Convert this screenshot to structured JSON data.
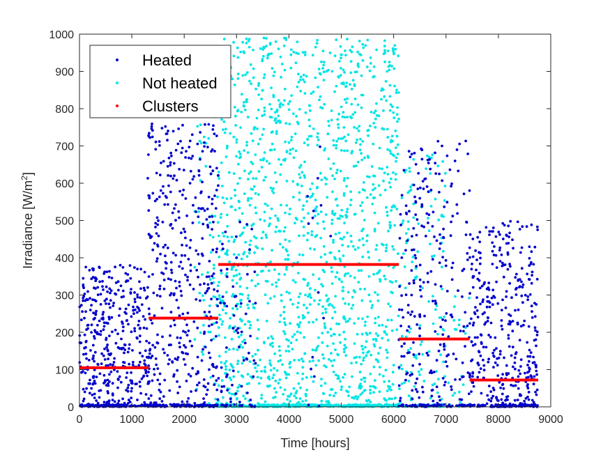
{
  "chart_data": {
    "type": "scatter",
    "xlabel": "Time [hours]",
    "ylabel_main": "Irradiance [W/m",
    "ylabel_sup": "2",
    "ylabel_end": "]",
    "xlim": [
      0,
      9000
    ],
    "ylim": [
      0,
      1000
    ],
    "xticks": [
      0,
      1000,
      2000,
      3000,
      4000,
      5000,
      6000,
      7000,
      8000,
      9000
    ],
    "yticks": [
      0,
      100,
      200,
      300,
      400,
      500,
      600,
      700,
      800,
      900,
      1000
    ],
    "grid": false,
    "legend_position": "top-left",
    "series": [
      {
        "name": "Heated",
        "color": "#0000cc",
        "ranges": [
          {
            "x": [
              0,
              1300
            ],
            "ymax": 380,
            "n": 500
          },
          {
            "x": [
              1300,
              2650
            ],
            "ymax": 760,
            "n": 520
          },
          {
            "x": [
              2650,
              3400
            ],
            "ymax": 500,
            "n": 80
          },
          {
            "x": [
              4200,
              4800
            ],
            "ymax": 720,
            "n": 15
          },
          {
            "x": [
              6100,
              7450
            ],
            "ymax": 720,
            "n": 320
          },
          {
            "x": [
              7450,
              8760
            ],
            "ymax": 500,
            "n": 480
          }
        ]
      },
      {
        "name": "Not heated",
        "color": "#00e5e5",
        "ranges": [
          {
            "x": [
              2200,
              2650
            ],
            "ymax": 780,
            "n": 80
          },
          {
            "x": [
              2650,
              6100
            ],
            "ymax": 990,
            "n": 1900
          },
          {
            "x": [
              6100,
              7000
            ],
            "ymax": 680,
            "n": 160
          },
          {
            "x": [
              7000,
              7450
            ],
            "ymax": 300,
            "n": 25
          }
        ]
      },
      {
        "name": "Clusters",
        "color": "#ff0000",
        "segments": [
          {
            "x": [
              0,
              1320
            ],
            "y": 105
          },
          {
            "x": [
              1320,
              2650
            ],
            "y": 238
          },
          {
            "x": [
              2650,
              6100
            ],
            "y": 382
          },
          {
            "x": [
              6100,
              7450
            ],
            "y": 182
          },
          {
            "x": [
              7450,
              8760
            ],
            "y": 72
          }
        ]
      }
    ]
  }
}
